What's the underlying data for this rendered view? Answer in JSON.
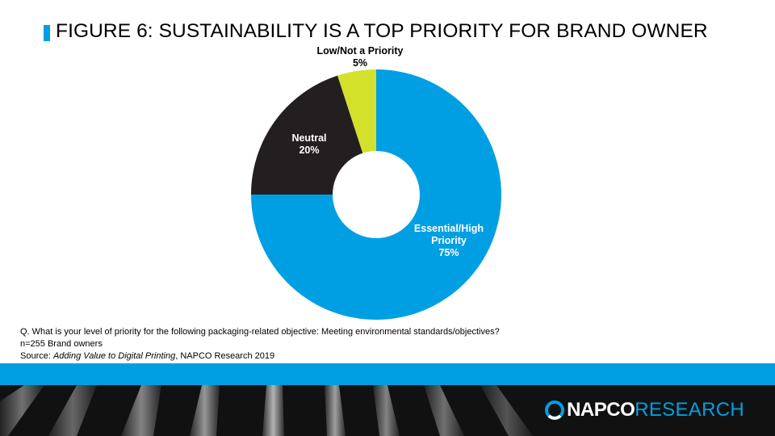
{
  "title": "FIGURE 6: SUSTAINABILITY IS A TOP PRIORITY FOR BRAND OWNER",
  "chart_data": {
    "type": "pie",
    "style": "donut",
    "title": "FIGURE 6: SUSTAINABILITY IS A TOP PRIORITY FOR BRAND OWNER",
    "slices": [
      {
        "label_lines": [
          "Essential/High",
          "Priority"
        ],
        "value_label": "75%",
        "value": 75,
        "color": "#009fe3",
        "label_color": "#ffffff"
      },
      {
        "label_lines": [
          "Neutral"
        ],
        "value_label": "20%",
        "value": 20,
        "color": "#231f20",
        "label_color": "#ffffff"
      },
      {
        "label_lines": [
          "Low/Not a Priority"
        ],
        "value_label": "5%",
        "value": 5,
        "color": "#d4e12c",
        "label_color": "#000000"
      }
    ]
  },
  "notes": {
    "question": "Q. What is your level of priority for the following packaging-related objective: Meeting environmental standards/objectives?",
    "sample": "n=255 Brand owners",
    "source_prefix": "Source: ",
    "source_title": "Adding Value to Digital Printing",
    "source_suffix": ", NAPCO Research 2019"
  },
  "logo": {
    "part1": "NAPCO",
    "part2": "RESEARCH"
  },
  "colors": {
    "accent_blue": "#009fe3",
    "dark": "#231f20",
    "lime": "#d4e12c"
  }
}
